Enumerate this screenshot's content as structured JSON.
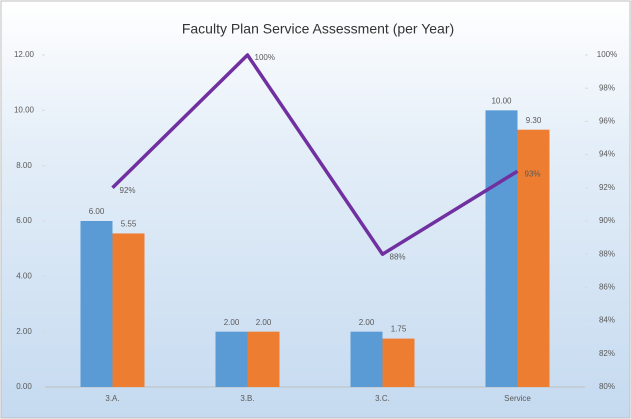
{
  "chart_data": {
    "type": "bar",
    "title": "Faculty Plan Service Assessment (per Year)",
    "categories": [
      "3.A.",
      "3.B.",
      "3.C.",
      "Service"
    ],
    "series": [
      {
        "type": "bar",
        "color": "#5b9bd5",
        "values": [
          6.0,
          2.0,
          2.0,
          10.0
        ],
        "value_labels": [
          "6.00",
          "2.00",
          "2.00",
          "10.00"
        ]
      },
      {
        "type": "bar",
        "color": "#ed7d31",
        "values": [
          5.55,
          2.0,
          1.75,
          9.3
        ],
        "value_labels": [
          "5.55",
          "2.00",
          "1.75",
          "9.30"
        ]
      },
      {
        "type": "line",
        "axis": "y2",
        "color": "#7030a0",
        "values": [
          92,
          100,
          88,
          93
        ],
        "value_labels": [
          "92%",
          "100%",
          "88%",
          "93%"
        ]
      }
    ],
    "ylim": [
      0,
      12
    ],
    "yticks": [
      {
        "value": 0,
        "label": "0.00"
      },
      {
        "value": 2,
        "label": "2.00"
      },
      {
        "value": 4,
        "label": "4.00"
      },
      {
        "value": 6,
        "label": "6.00"
      },
      {
        "value": 8,
        "label": "8.00"
      },
      {
        "value": 10,
        "label": "10.00"
      },
      {
        "value": 12,
        "label": "12.00"
      }
    ],
    "y2lim": [
      80,
      100
    ],
    "y2ticks": [
      {
        "value": 80,
        "label": "80%"
      },
      {
        "value": 82,
        "label": "82%"
      },
      {
        "value": 84,
        "label": "84%"
      },
      {
        "value": 86,
        "label": "86%"
      },
      {
        "value": 88,
        "label": "88%"
      },
      {
        "value": 90,
        "label": "90%"
      },
      {
        "value": 92,
        "label": "92%"
      },
      {
        "value": 94,
        "label": "94%"
      },
      {
        "value": 96,
        "label": "96%"
      },
      {
        "value": 98,
        "label": "98%"
      },
      {
        "value": 100,
        "label": "100%"
      }
    ]
  }
}
